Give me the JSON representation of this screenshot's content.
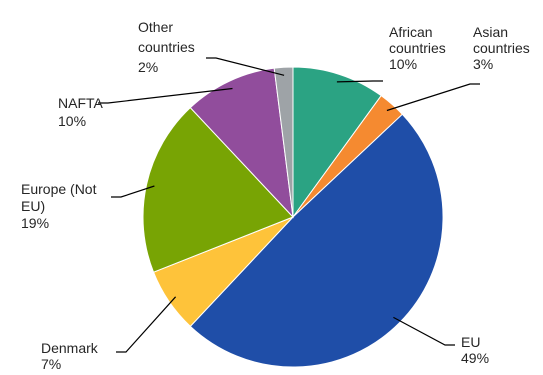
{
  "chart_data": {
    "type": "pie",
    "title": "",
    "slices": [
      {
        "category": "African countries",
        "label_lines": [
          "African",
          "countries"
        ],
        "pct_label": "10%",
        "value": 10,
        "color": "#2ba383"
      },
      {
        "category": "Asian countries",
        "label_lines": [
          "Asian",
          "countries"
        ],
        "pct_label": "3%",
        "value": 3,
        "color": "#f58a30"
      },
      {
        "category": "EU",
        "label_lines": [
          "EU"
        ],
        "pct_label": "49%",
        "value": 49,
        "color": "#1f4ea8"
      },
      {
        "category": "Denmark",
        "label_lines": [
          "Denmark"
        ],
        "pct_label": "7%",
        "value": 7,
        "color": "#fec33a"
      },
      {
        "category": "Europe (Not EU)",
        "label_lines": [
          "Europe (Not",
          "EU)"
        ],
        "pct_label": "19%",
        "value": 19,
        "color": "#78a404"
      },
      {
        "category": "NAFTA",
        "label_lines": [
          "NAFTA"
        ],
        "pct_label": "10%",
        "value": 10,
        "color": "#914d9c"
      },
      {
        "category": "Other countries",
        "label_lines": [
          "Other",
          "countries"
        ],
        "pct_label": "2%",
        "value": 2,
        "color": "#9ea3a7"
      }
    ],
    "legend": "none",
    "label_style": "category and percent with leader lines"
  }
}
